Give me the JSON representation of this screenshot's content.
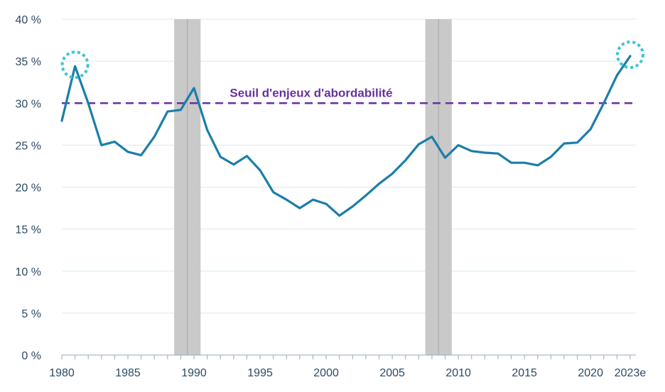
{
  "chart_data": {
    "type": "line",
    "title": "",
    "xlabel": "",
    "ylabel": "",
    "xlim": [
      1980,
      2023
    ],
    "ylim": [
      0,
      40
    ],
    "grid": true,
    "y_ticks": [
      {
        "value": 0,
        "label": "0 %"
      },
      {
        "value": 5,
        "label": "5 %"
      },
      {
        "value": 10,
        "label": "10 %"
      },
      {
        "value": 15,
        "label": "15 %"
      },
      {
        "value": 20,
        "label": "20 %"
      },
      {
        "value": 25,
        "label": "25 %"
      },
      {
        "value": 30,
        "label": "30 %"
      },
      {
        "value": 35,
        "label": "35 %"
      },
      {
        "value": 40,
        "label": "40 %"
      }
    ],
    "x_ticks": [
      {
        "value": 1980,
        "label": "1980"
      },
      {
        "value": 1985,
        "label": "1985"
      },
      {
        "value": 1990,
        "label": "1990"
      },
      {
        "value": 1995,
        "label": "1995"
      },
      {
        "value": 2000,
        "label": "2000"
      },
      {
        "value": 2005,
        "label": "2005"
      },
      {
        "value": 2010,
        "label": "2010"
      },
      {
        "value": 2015,
        "label": "2015"
      },
      {
        "value": 2020,
        "label": "2020"
      },
      {
        "value": 2023,
        "label": "2023e"
      }
    ],
    "series": [
      {
        "color": "#1b7ea8",
        "x": [
          1980,
          1981,
          1982,
          1983,
          1984,
          1985,
          1986,
          1987,
          1988,
          1989,
          1990,
          1991,
          1992,
          1993,
          1994,
          1995,
          1996,
          1997,
          1998,
          1999,
          2000,
          2001,
          2002,
          2003,
          2004,
          2005,
          2006,
          2007,
          2008,
          2009,
          2010,
          2011,
          2012,
          2013,
          2014,
          2015,
          2016,
          2017,
          2018,
          2019,
          2020,
          2021,
          2022,
          2023
        ],
        "y": [
          27.9,
          34.4,
          30.0,
          25.0,
          25.4,
          24.2,
          23.8,
          26.0,
          29.0,
          29.2,
          31.8,
          26.8,
          23.6,
          22.7,
          23.7,
          22.0,
          19.4,
          18.5,
          17.5,
          18.5,
          18.0,
          16.6,
          17.7,
          19.0,
          20.4,
          21.6,
          23.2,
          25.1,
          26.0,
          23.5,
          25.0,
          24.3,
          24.1,
          24.0,
          22.9,
          22.9,
          22.6,
          23.6,
          25.2,
          25.3,
          26.9,
          30.0,
          33.3,
          35.6
        ]
      }
    ],
    "threshold": {
      "value": 30,
      "label": "Seuil d'enjeux d'abordabilité",
      "color": "#6a2f9e"
    },
    "recessions": [
      {
        "start": 1988.5,
        "end": 1990.5,
        "color": "#c9c9c9"
      },
      {
        "start": 2007.5,
        "end": 2009.5,
        "color": "#c9c9c9"
      }
    ],
    "highlights": [
      {
        "x": 1981,
        "y": 34.4,
        "color": "#3cc3d6"
      },
      {
        "x": 2023,
        "y": 35.6,
        "color": "#3cc3d6"
      }
    ],
    "colors": {
      "grid": "#dbe8f2",
      "axis": "#9aa9b8",
      "tick_text": "#2b4a66"
    }
  }
}
